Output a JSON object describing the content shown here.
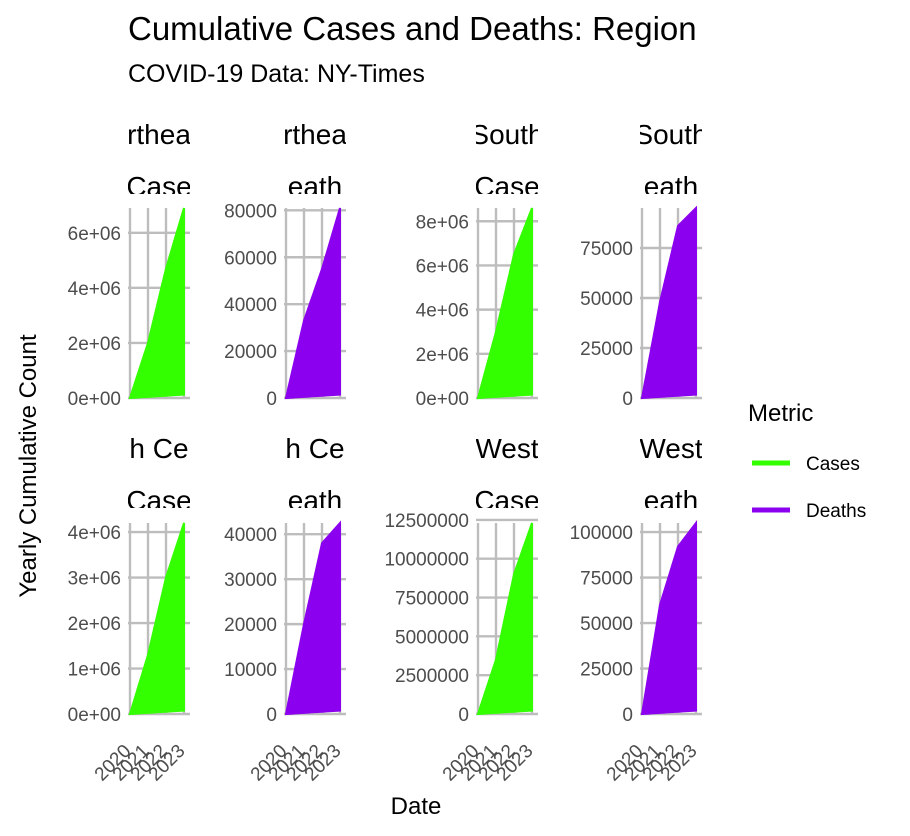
{
  "chart_data": {
    "type": "area",
    "title": "Cumulative Cases and Deaths: Region",
    "subtitle": "COVID-19 Data: NY-Times",
    "xlabel": "Date",
    "ylabel": "Yearly Cumulative Count",
    "x_ticks": [
      "2020",
      "2021",
      "2022",
      "2023"
    ],
    "legend": {
      "title": "Metric",
      "position": "right",
      "entries": [
        {
          "label": "Cases",
          "color": "#33ff00"
        },
        {
          "label": "Deaths",
          "color": "#8b00ee"
        }
      ]
    },
    "grid": true,
    "panels": [
      {
        "region": "Northeast",
        "metric": "Cases",
        "strip_region": "rthea",
        "strip_metric": "Case",
        "color": "#33ff00",
        "ylim": [
          0,
          6900000
        ],
        "y_ticks": [
          0,
          2000000,
          4000000,
          6000000
        ],
        "y_tick_labels": [
          "0e+00",
          "2e+06",
          "4e+06",
          "6e+06"
        ],
        "upper": [
          0.2,
          2000000,
          4700000,
          6900000
        ]
      },
      {
        "region": "Northeast",
        "metric": "Deaths",
        "strip_region": "rthea",
        "strip_metric": "eath",
        "color": "#8b00ee",
        "ylim": [
          0,
          81000
        ],
        "y_ticks": [
          0,
          20000,
          40000,
          60000,
          80000
        ],
        "y_tick_labels": [
          "0",
          "20000",
          "40000",
          "60000",
          "80000"
        ],
        "upper": [
          0.2,
          33000,
          55000,
          81000
        ]
      },
      {
        "region": "South",
        "metric": "Cases",
        "strip_region": "South",
        "strip_metric": "Case",
        "color": "#33ff00",
        "ylim": [
          0,
          8600000
        ],
        "y_ticks": [
          0,
          2000000,
          4000000,
          6000000,
          8000000
        ],
        "y_tick_labels": [
          "0e+00",
          "2e+06",
          "4e+06",
          "6e+06",
          "8e+06"
        ],
        "upper": [
          0.2,
          3000000,
          6500000,
          8600000
        ]
      },
      {
        "region": "South",
        "metric": "Deaths",
        "strip_region": "South",
        "strip_metric": "eath",
        "color": "#8b00ee",
        "ylim": [
          0,
          95000
        ],
        "y_ticks": [
          0,
          25000,
          50000,
          75000
        ],
        "y_tick_labels": [
          "0",
          "25000",
          "50000",
          "75000"
        ],
        "upper": [
          0.2,
          48000,
          86000,
          95000
        ]
      },
      {
        "region": "North Central",
        "metric": "Cases",
        "strip_region": "h Ce",
        "strip_metric": "Case",
        "color": "#33ff00",
        "ylim": [
          0,
          4200000
        ],
        "y_ticks": [
          0,
          1000000,
          2000000,
          3000000,
          4000000
        ],
        "y_tick_labels": [
          "0e+00",
          "1e+06",
          "2e+06",
          "3e+06",
          "4e+06"
        ],
        "upper": [
          0.2,
          1300000,
          3000000,
          4200000
        ]
      },
      {
        "region": "North Central",
        "metric": "Deaths",
        "strip_region": "h Ce",
        "strip_metric": "eath",
        "color": "#8b00ee",
        "ylim": [
          0,
          42500
        ],
        "y_ticks": [
          0,
          10000,
          20000,
          30000,
          40000
        ],
        "y_tick_labels": [
          "0",
          "10000",
          "20000",
          "30000",
          "40000"
        ],
        "upper": [
          0.2,
          20000,
          38000,
          42500
        ]
      },
      {
        "region": "West",
        "metric": "Cases",
        "strip_region": "West",
        "strip_metric": "Case",
        "color": "#33ff00",
        "ylim": [
          0,
          12300000
        ],
        "y_ticks": [
          0,
          2500000,
          5000000,
          7500000,
          10000000,
          12500000
        ],
        "y_tick_labels": [
          "0",
          "2500000",
          "5000000",
          "7500000",
          "10000000",
          "12500000"
        ],
        "upper": [
          0.2,
          3500000,
          9000000,
          12300000
        ]
      },
      {
        "region": "West",
        "metric": "Deaths",
        "strip_region": "West",
        "strip_metric": "eath",
        "color": "#8b00ee",
        "ylim": [
          0,
          105000
        ],
        "y_ticks": [
          0,
          25000,
          50000,
          75000,
          100000
        ],
        "y_tick_labels": [
          "0",
          "25000",
          "50000",
          "75000",
          "100000"
        ],
        "upper": [
          0.2,
          60000,
          92000,
          105000
        ]
      }
    ]
  }
}
